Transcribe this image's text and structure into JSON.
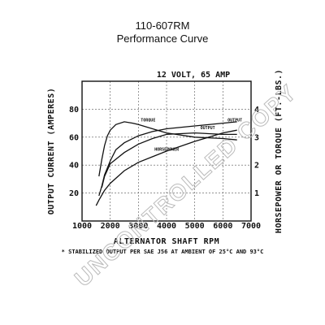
{
  "header": {
    "part_number": "110-607RM",
    "subtitle": "Performance Curve"
  },
  "watermark": "UNCONTROLLED COPY",
  "chart_data": {
    "type": "line",
    "condition_label": "12 VOLT, 65 AMP",
    "xlabel": "ALTERNATOR SHAFT RPM",
    "ylabel_left": "OUTPUT CURRENT (AMPERES)",
    "ylabel_right": "HORSEPOWER OR TORQUE (FT.-LBS.)",
    "xlim": [
      1000,
      7000
    ],
    "ylim_left": [
      0,
      100
    ],
    "ylim_right": [
      0,
      5
    ],
    "x_ticks": [
      "1000",
      "2000",
      "3000",
      "4000",
      "5000",
      "6000",
      "7000"
    ],
    "y_ticks_left": [
      "20",
      "40",
      "60",
      "80"
    ],
    "y_ticks_right": [
      "1",
      "2",
      "3",
      "4"
    ],
    "series": [
      {
        "name": "OUTPUT",
        "axis": "left",
        "x": [
          1600,
          1700,
          1800,
          2000,
          2200,
          2500,
          3000,
          3500,
          4000,
          5000,
          6000,
          6500
        ],
        "y": [
          18,
          25,
          33,
          43,
          51,
          56,
          61,
          64,
          66,
          68,
          70,
          71
        ]
      },
      {
        "name": "TORQUE",
        "axis": "right",
        "x": [
          1600,
          1700,
          1800,
          1900,
          2000,
          2200,
          2500,
          2800,
          3000,
          3500,
          4000,
          5000,
          6000,
          6500
        ],
        "y": [
          1.6,
          2.2,
          2.7,
          3.05,
          3.25,
          3.45,
          3.55,
          3.5,
          3.45,
          3.3,
          3.15,
          3.0,
          2.95,
          2.9
        ]
      },
      {
        "name": "OUTPUT",
        "axis": "right",
        "x": [
          1700,
          1800,
          2000,
          2500,
          3000,
          3500,
          4000,
          5000,
          6000,
          6500
        ],
        "y": [
          1.2,
          1.6,
          2.05,
          2.45,
          2.75,
          2.95,
          3.1,
          3.15,
          3.1,
          3.1
        ]
      },
      {
        "name": "HORSEPOWER",
        "axis": "right",
        "x": [
          1500,
          1600,
          1800,
          2000,
          2500,
          3000,
          3500,
          4000,
          5000,
          6000,
          6500
        ],
        "y": [
          0.55,
          0.75,
          1.1,
          1.35,
          1.8,
          2.1,
          2.3,
          2.5,
          2.85,
          3.15,
          3.25
        ]
      }
    ],
    "footnote": "* STABILIZED OUTPUT PER SAE J56 AT AMBIENT OF 25°C AND 93°C"
  }
}
